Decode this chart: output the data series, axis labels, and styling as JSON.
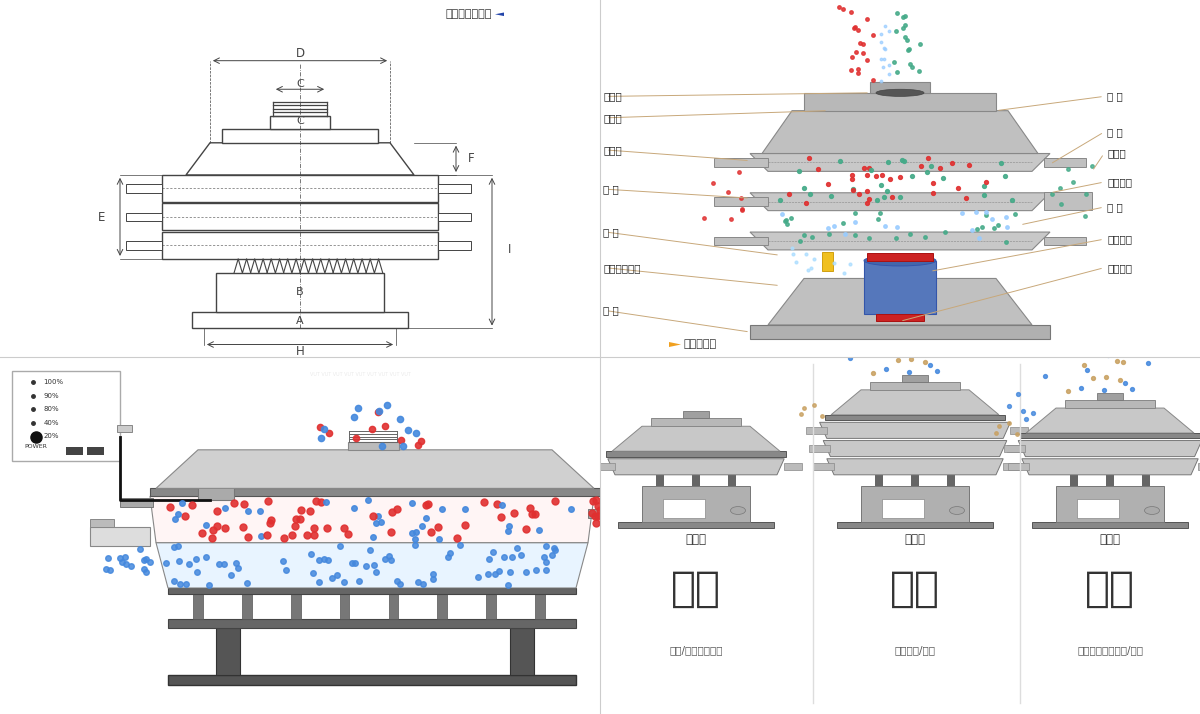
{
  "bg_color": "#ffffff",
  "border_color": "#cccccc",
  "title_top_left": "外形尺寸示意图",
  "title_top_right": "结构示意图",
  "labels_left": [
    "进料口",
    "防尘盖",
    "出料口",
    "束 环",
    "弹 簧",
    "运输固定螺栓",
    "机 座"
  ],
  "labels_right": [
    "筛 网",
    "网 架",
    "加重块",
    "上部重锤",
    "筛 盘",
    "振动电机",
    "下部重锤"
  ],
  "dim_labels": [
    "A",
    "B",
    "C",
    "D",
    "E",
    "F",
    "H",
    "I"
  ],
  "bottom_titles": [
    "分级",
    "过滤",
    "除杂"
  ],
  "bottom_subtitles": [
    "颗粒/粉末准确分级",
    "去除异物/结块",
    "去除液体中的颗粒/异物"
  ],
  "bottom_mode_labels": [
    "单层式",
    "三层式",
    "双层式"
  ],
  "section_line_color": "#c8a87a",
  "text_color_dark": "#333333",
  "red_dot_color": "#e03030",
  "blue_dot_color": "#4488dd",
  "green_dot_color": "#44aa88",
  "tan_dot_color": "#c8a060",
  "machine_gray": "#b0b0b0",
  "machine_dark": "#666666",
  "machine_light": "#d8d8d8"
}
